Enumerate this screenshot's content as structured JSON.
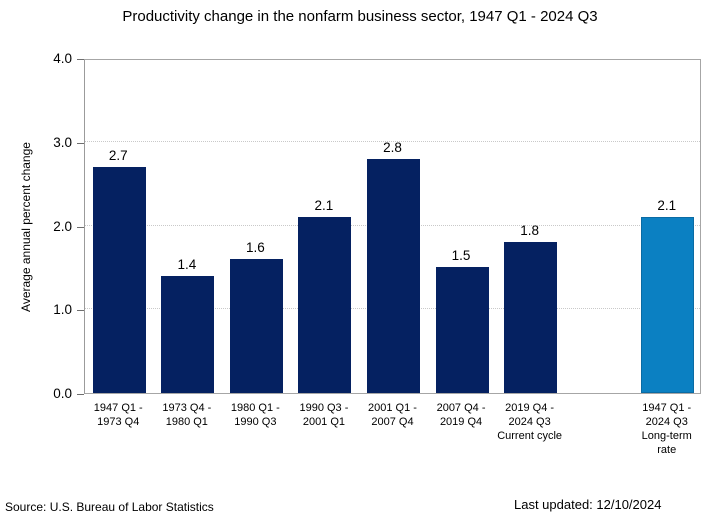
{
  "title": "Productivity change in the nonfarm business sector, 1947 Q1 - 2024 Q3",
  "footer": {
    "source": "Source: U.S. Bureau of Labor Statistics",
    "last_updated": "Last updated: 12/10/2024"
  },
  "chart_data": {
    "type": "bar",
    "title": "Productivity change in the nonfarm business sector, 1947 Q1 - 2024 Q3",
    "xlabel": "",
    "ylabel": "Average annual percent change",
    "ylim": [
      0.0,
      4.0
    ],
    "yticks": [
      0.0,
      1.0,
      2.0,
      3.0,
      4.0
    ],
    "gridlines": [
      1.0,
      2.0,
      3.0
    ],
    "grid_style": "dotted horizontal",
    "legend": "none",
    "slot_count": 9,
    "bars": [
      {
        "slot": 0,
        "value": 2.7,
        "label": "2.7",
        "color": "navy",
        "category_lines": [
          "1947 Q1 -",
          "1973 Q4"
        ]
      },
      {
        "slot": 1,
        "value": 1.4,
        "label": "1.4",
        "color": "navy",
        "category_lines": [
          "1973 Q4 -",
          "1980 Q1"
        ]
      },
      {
        "slot": 2,
        "value": 1.6,
        "label": "1.6",
        "color": "navy",
        "category_lines": [
          "1980 Q1 -",
          "1990 Q3"
        ]
      },
      {
        "slot": 3,
        "value": 2.1,
        "label": "2.1",
        "color": "navy",
        "category_lines": [
          "1990 Q3 -",
          "2001 Q1"
        ]
      },
      {
        "slot": 4,
        "value": 2.8,
        "label": "2.8",
        "color": "navy",
        "category_lines": [
          "2001 Q1 -",
          "2007 Q4"
        ]
      },
      {
        "slot": 5,
        "value": 1.5,
        "label": "1.5",
        "color": "navy",
        "category_lines": [
          "2007 Q4 -",
          "2019 Q4"
        ]
      },
      {
        "slot": 6,
        "value": 1.8,
        "label": "1.8",
        "color": "navy",
        "category_lines": [
          "2019 Q4 -",
          "2024 Q3",
          "Current cycle"
        ]
      },
      {
        "slot": 8,
        "value": 2.1,
        "label": "2.1",
        "color": "light_blue",
        "category_lines": [
          "1947 Q1 -",
          "2024 Q3",
          "Long-term",
          "rate"
        ]
      }
    ],
    "colors": {
      "navy": "#052161",
      "light_blue": "#0b80c2",
      "light_blue_border": "#0a6ba4",
      "axis": "#a6a6a6",
      "grid": "#c9c9c9"
    }
  }
}
